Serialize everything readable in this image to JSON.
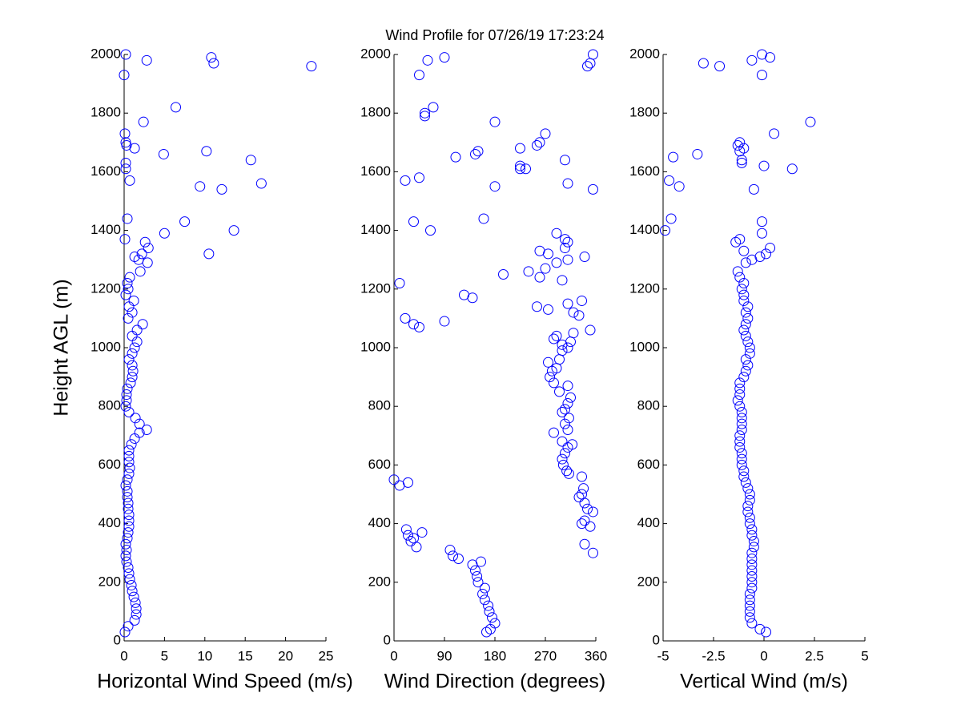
{
  "title": "Wind Profile for  07/26/19 17:23:24",
  "chart_data": [
    {
      "type": "scatter",
      "xlabel": "Horizontal Wind Speed (m/s)",
      "ylabel": "Height AGL (m)",
      "color": "#0000ff",
      "xlim": [
        0,
        25
      ],
      "xticks": [
        0,
        5,
        10,
        15,
        20,
        25
      ],
      "ylim": [
        0,
        2000
      ],
      "yticks": [
        0,
        200,
        400,
        600,
        800,
        1000,
        1200,
        1400,
        1600,
        1800,
        2000
      ],
      "x": [
        0.1,
        0.5,
        1.3,
        1.5,
        1.5,
        1.4,
        1.2,
        1.0,
        0.9,
        0.7,
        0.6,
        0.5,
        0.3,
        0.2,
        0.3,
        0.2,
        0.4,
        0.5,
        0.6,
        0.6,
        0.6,
        0.5,
        0.5,
        0.4,
        0.4,
        0.2,
        0.4,
        0.6,
        0.7,
        0.6,
        0.6,
        0.6,
        0.9,
        1.3,
        1.9,
        2.8,
        1.9,
        1.4,
        0.6,
        0.2,
        0.3,
        0.3,
        0.4,
        0.8,
        1.0,
        1.1,
        1.0,
        0.6,
        1.0,
        1.3,
        1.6,
        1.0,
        1.6,
        2.3,
        0.5,
        1.0,
        0.6,
        1.2,
        0.2,
        0.5,
        0.4,
        0.7,
        2.0,
        1.8,
        2.2,
        3.0,
        2.6,
        0.1,
        5.0,
        13.6,
        7.5,
        0.4,
        10.5,
        2.9,
        1.3,
        9.4,
        12.1,
        17.0,
        0.7,
        0.2,
        0.2,
        15.7,
        4.9,
        10.2,
        1.3,
        0.3,
        0.2,
        0.1,
        2.4,
        6.4,
        0.0,
        23.2,
        11.1,
        2.8,
        10.8,
        0.2
      ],
      "values": [
        30,
        50,
        70,
        90,
        110,
        130,
        150,
        170,
        190,
        210,
        230,
        250,
        270,
        290,
        310,
        330,
        350,
        370,
        390,
        410,
        430,
        450,
        470,
        490,
        510,
        530,
        550,
        570,
        590,
        610,
        630,
        650,
        670,
        690,
        710,
        720,
        740,
        760,
        780,
        800,
        820,
        840,
        860,
        880,
        900,
        920,
        940,
        960,
        980,
        1000,
        1020,
        1040,
        1060,
        1080,
        1100,
        1120,
        1140,
        1160,
        1180,
        1200,
        1220,
        1240,
        1260,
        1300,
        1320,
        1340,
        1360,
        1370,
        1390,
        1400,
        1430,
        1440,
        1320,
        1290,
        1310,
        1550,
        1540,
        1560,
        1570,
        1610,
        1630,
        1640,
        1660,
        1670,
        1680,
        1690,
        1700,
        1730,
        1770,
        1820,
        1930,
        1960,
        1970,
        1980,
        1990,
        2000
      ]
    },
    {
      "type": "scatter",
      "xlabel": "Wind Direction (degrees)",
      "color": "#0000ff",
      "xlim": [
        0,
        360
      ],
      "xticks": [
        0,
        90,
        180,
        270,
        360
      ],
      "ylim": [
        0,
        2000
      ],
      "yticks": [
        0,
        200,
        400,
        600,
        800,
        1000,
        1200,
        1400,
        1600,
        1800,
        2000
      ],
      "x": [
        165,
        172,
        180,
        175,
        170,
        168,
        162,
        158,
        162,
        150,
        148,
        145,
        155,
        140,
        115,
        105,
        100,
        40,
        30,
        35,
        25,
        50,
        22,
        0,
        10,
        25,
        355,
        340,
        350,
        335,
        340,
        355,
        345,
        340,
        330,
        335,
        338,
        335,
        312,
        308,
        302,
        300,
        305,
        310,
        318,
        300,
        285,
        310,
        305,
        312,
        300,
        305,
        310,
        315,
        295,
        310,
        285,
        278,
        282,
        290,
        275,
        295,
        300,
        310,
        300,
        315,
        285,
        290,
        320,
        35,
        45,
        350,
        90,
        20,
        320,
        275,
        255,
        310,
        140,
        125,
        335,
        330,
        10,
        195,
        240,
        260,
        270,
        290,
        275,
        260,
        300,
        340,
        310,
        305,
        310,
        305,
        290,
        65,
        35,
        160,
        355,
        310,
        180,
        20,
        45,
        225,
        225,
        235,
        305,
        110,
        145,
        150,
        225,
        255,
        260,
        270,
        180,
        55,
        55,
        70,
        45,
        345,
        350,
        60,
        90,
        355
      ],
      "values": [
        30,
        40,
        60,
        80,
        100,
        120,
        140,
        160,
        180,
        200,
        220,
        240,
        270,
        260,
        280,
        290,
        310,
        320,
        340,
        350,
        360,
        370,
        380,
        550,
        530,
        540,
        300,
        330,
        390,
        400,
        410,
        440,
        450,
        470,
        490,
        500,
        520,
        560,
        570,
        580,
        600,
        620,
        640,
        660,
        670,
        680,
        710,
        720,
        740,
        760,
        780,
        790,
        810,
        830,
        850,
        870,
        880,
        900,
        920,
        930,
        950,
        960,
        990,
        1000,
        1010,
        1020,
        1030,
        1040,
        1050,
        1080,
        1070,
        1060,
        1090,
        1100,
        1120,
        1130,
        1140,
        1150,
        1170,
        1180,
        1160,
        1110,
        1220,
        1250,
        1260,
        1240,
        1270,
        1290,
        1320,
        1330,
        1230,
        1310,
        1300,
        1340,
        1360,
        1370,
        1390,
        1400,
        1430,
        1440,
        1540,
        1560,
        1550,
        1570,
        1580,
        1610,
        1620,
        1610,
        1640,
        1650,
        1660,
        1670,
        1680,
        1690,
        1700,
        1730,
        1770,
        1790,
        1800,
        1820,
        1930,
        1960,
        1970,
        1980,
        1990,
        2000
      ]
    },
    {
      "type": "scatter",
      "xlabel": "Vertical Wind (m/s)",
      "color": "#0000ff",
      "xlim": [
        -5,
        5
      ],
      "xticks": [
        -5,
        -2.5,
        0,
        2.5,
        5
      ],
      "ylim": [
        0,
        2000
      ],
      "yticks": [
        0,
        200,
        400,
        600,
        800,
        1000,
        1200,
        1400,
        1600,
        1800,
        2000
      ],
      "x": [
        0.1,
        -0.2,
        -0.6,
        -0.7,
        -0.7,
        -0.7,
        -0.7,
        -0.7,
        -0.6,
        -0.6,
        -0.6,
        -0.6,
        -0.6,
        -0.6,
        -0.6,
        -0.5,
        -0.5,
        -0.6,
        -0.6,
        -0.7,
        -0.7,
        -0.8,
        -0.8,
        -0.7,
        -0.7,
        -0.8,
        -0.9,
        -1.0,
        -1.0,
        -1.1,
        -1.1,
        -1.1,
        -1.2,
        -1.2,
        -1.2,
        -1.1,
        -1.1,
        -1.1,
        -1.1,
        -1.2,
        -1.3,
        -1.2,
        -1.2,
        -1.2,
        -1.0,
        -0.9,
        -0.8,
        -0.9,
        -0.7,
        -0.7,
        -0.8,
        -0.9,
        -1.0,
        -0.9,
        -0.8,
        -0.9,
        -0.8,
        -1.0,
        -1.0,
        -1.1,
        -1.0,
        -1.2,
        -1.3,
        -0.9,
        -0.6,
        -0.2,
        0.1,
        0.3,
        -1.0,
        -1.4,
        -1.2,
        -4.9,
        -0.1,
        -4.6,
        -0.1,
        -0.5,
        -4.2,
        -4.7,
        1.4,
        0.0,
        -1.1,
        -1.1,
        -4.5,
        -3.3,
        -1.2,
        -1.0,
        -1.3,
        -1.2,
        0.5,
        2.3,
        -0.1,
        -2.2,
        -3.0,
        -0.6,
        0.3,
        -0.1
      ],
      "values": [
        30,
        40,
        60,
        80,
        100,
        120,
        140,
        160,
        180,
        200,
        220,
        240,
        260,
        280,
        300,
        320,
        340,
        360,
        380,
        400,
        420,
        440,
        460,
        480,
        500,
        520,
        540,
        560,
        580,
        600,
        620,
        640,
        660,
        680,
        700,
        720,
        740,
        760,
        780,
        800,
        820,
        840,
        860,
        880,
        900,
        920,
        940,
        960,
        980,
        1000,
        1020,
        1040,
        1060,
        1080,
        1100,
        1120,
        1140,
        1160,
        1180,
        1200,
        1220,
        1240,
        1260,
        1290,
        1300,
        1310,
        1320,
        1340,
        1330,
        1360,
        1370,
        1400,
        1390,
        1440,
        1430,
        1540,
        1550,
        1570,
        1610,
        1620,
        1630,
        1640,
        1650,
        1660,
        1670,
        1680,
        1690,
        1700,
        1730,
        1770,
        1930,
        1960,
        1970,
        1980,
        1990,
        2000
      ]
    }
  ]
}
